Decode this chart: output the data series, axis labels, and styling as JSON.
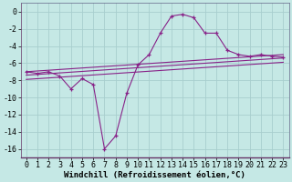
{
  "background_color": "#c5e8e5",
  "grid_color": "#a8cece",
  "line_color": "#882288",
  "title": "",
  "xlabel": "Windchill (Refroidissement éolien,°C)",
  "ylabel": "",
  "xlim": [
    -0.5,
    23.5
  ],
  "ylim": [
    -17,
    1
  ],
  "yticks": [
    0,
    -2,
    -4,
    -6,
    -8,
    -10,
    -12,
    -14,
    -16
  ],
  "xticks": [
    0,
    1,
    2,
    3,
    4,
    5,
    6,
    7,
    8,
    9,
    10,
    11,
    12,
    13,
    14,
    15,
    16,
    17,
    18,
    19,
    20,
    21,
    22,
    23
  ],
  "series1_x": [
    0,
    1,
    2,
    3,
    4,
    5,
    6,
    7,
    8,
    9,
    10,
    11,
    12,
    13,
    14,
    15,
    16,
    17,
    18,
    19,
    20,
    21,
    22,
    23
  ],
  "series1_y": [
    -7.0,
    -7.2,
    -7.0,
    -7.5,
    -9.0,
    -7.8,
    -8.5,
    -16.0,
    -14.5,
    -9.5,
    -6.2,
    -5.0,
    -2.5,
    -0.5,
    -0.3,
    -0.7,
    -2.5,
    -2.5,
    -4.5,
    -5.0,
    -5.2,
    -5.0,
    -5.2,
    -5.3
  ],
  "series2_x": [
    0,
    23
  ],
  "series2_y": [
    -7.0,
    -5.0
  ],
  "series3_x": [
    0,
    23
  ],
  "series3_y": [
    -7.4,
    -5.4
  ],
  "series4_x": [
    0,
    23
  ],
  "series4_y": [
    -7.9,
    -5.9
  ],
  "xlabel_fontsize": 6.5,
  "tick_fontsize": 6.0,
  "linewidth": 0.8,
  "markersize": 3.0
}
